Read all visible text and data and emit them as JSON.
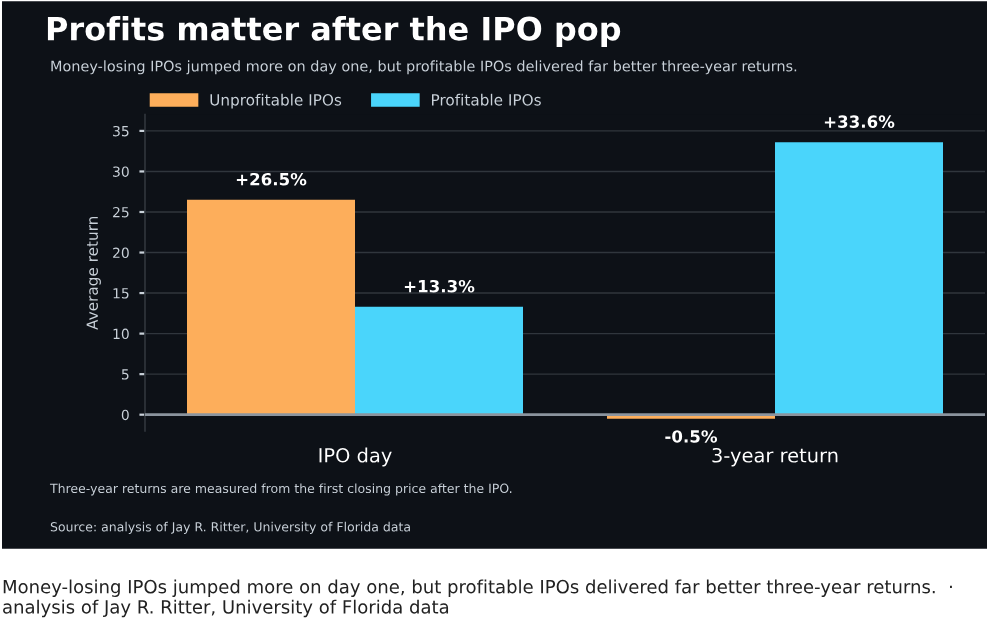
{
  "chart_data": {
    "type": "bar",
    "title": "Profits matter after the IPO pop",
    "subtitle": "Money-losing IPOs jumped more on day one, but profitable IPOs delivered far better three-year returns.",
    "ylabel": "Average return",
    "categories": [
      "IPO day",
      "3-year return"
    ],
    "series": [
      {
        "name": "Unprofitable IPOs",
        "color": "#fdae5b",
        "values": [
          26.5,
          -0.5
        ],
        "value_labels": [
          "+26.5%",
          "-0.5%"
        ]
      },
      {
        "name": "Profitable IPOs",
        "color": "#4ad5fb",
        "values": [
          13.3,
          33.6
        ],
        "value_labels": [
          "+13.3%",
          "+33.6%"
        ]
      }
    ],
    "ylim": [
      -2,
      37
    ],
    "yticks": [
      0,
      5,
      10,
      15,
      20,
      25,
      30,
      35
    ],
    "grid": "y",
    "legend": "top left",
    "annotations": [
      "Three-year returns are measured from the first closing price after the IPO.",
      "Source: analysis of Jay R. Ritter, University of Florida data",
      "Money-losing IPOs jumped more on day one, but profitable IPOs delivered far better three-year returns.  ·  analysis of Jay R. Ritter, University of Florida data"
    ]
  }
}
